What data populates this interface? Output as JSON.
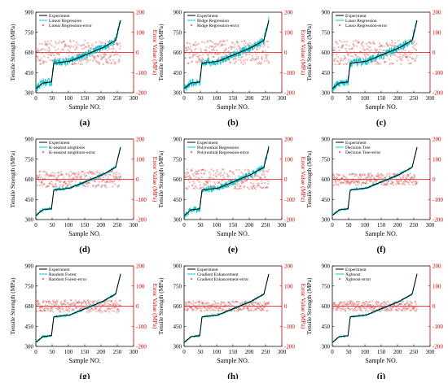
{
  "figure": {
    "xlabel": "Sample NO.",
    "ylabel_left": "Tensile Strength (MPa)",
    "ylabel_right": "Error Value (MPa)"
  },
  "colors": {
    "experiment": "#000000",
    "prediction": "#00c8d2",
    "error": "#d24a4a",
    "zero_line": "#ff0000",
    "right_axis": "#cc0000"
  },
  "chart_data": [
    {
      "type": "line",
      "panel_label": "(a)",
      "series": [
        {
          "name": "Experiment"
        },
        {
          "name": "Linear Regression"
        },
        {
          "name": "Linear Regression-error"
        }
      ],
      "xlim": [
        0,
        300
      ],
      "ylim_left": [
        300,
        900
      ],
      "ylim_right": [
        -200,
        200
      ],
      "xticks": [
        0,
        50,
        100,
        150,
        200,
        250,
        300
      ],
      "yticks_left": [
        300,
        450,
        600,
        750,
        900
      ],
      "yticks_right": [
        -200,
        -100,
        0,
        100,
        200
      ],
      "grid": false,
      "legend": "top-left",
      "pred_noise": 30,
      "err_range": 60
    },
    {
      "type": "line",
      "panel_label": "(b)",
      "series": [
        {
          "name": "Experiment"
        },
        {
          "name": "Ridge Regression"
        },
        {
          "name": "Ridge Regression-error"
        }
      ],
      "xlim": [
        0,
        300
      ],
      "ylim_left": [
        300,
        900
      ],
      "ylim_right": [
        -200,
        200
      ],
      "xticks": [
        0,
        50,
        100,
        150,
        200,
        250,
        300
      ],
      "yticks_left": [
        300,
        450,
        600,
        750,
        900
      ],
      "yticks_right": [
        -200,
        -100,
        0,
        100,
        200
      ],
      "grid": false,
      "legend": "top-left",
      "pred_noise": 30,
      "err_range": 60
    },
    {
      "type": "line",
      "panel_label": "(c)",
      "series": [
        {
          "name": "Experiment"
        },
        {
          "name": "Lasso Regression"
        },
        {
          "name": "Lasso Regression-error"
        }
      ],
      "xlim": [
        0,
        300
      ],
      "ylim_left": [
        300,
        900
      ],
      "ylim_right": [
        -200,
        200
      ],
      "xticks": [
        0,
        50,
        100,
        150,
        200,
        250,
        300
      ],
      "yticks_left": [
        300,
        450,
        600,
        750,
        900
      ],
      "yticks_right": [
        -200,
        -100,
        0,
        100,
        200
      ],
      "grid": false,
      "legend": "top-left",
      "pred_noise": 30,
      "err_range": 60
    },
    {
      "type": "line",
      "panel_label": "(d)",
      "series": [
        {
          "name": "Experiment"
        },
        {
          "name": "K-nearest neighbors"
        },
        {
          "name": "K-nearest neighbors-error"
        }
      ],
      "xlim": [
        0,
        300
      ],
      "ylim_left": [
        300,
        900
      ],
      "ylim_right": [
        -200,
        200
      ],
      "xticks": [
        0,
        50,
        100,
        150,
        200,
        250,
        300
      ],
      "yticks_left": [
        300,
        450,
        600,
        750,
        900
      ],
      "yticks_right": [
        -200,
        -100,
        0,
        100,
        200
      ],
      "grid": false,
      "legend": "top-left",
      "pred_noise": 12,
      "err_range": 40
    },
    {
      "type": "line",
      "panel_label": "(e)",
      "series": [
        {
          "name": "Experiment"
        },
        {
          "name": "Polynomial Regression"
        },
        {
          "name": "Polynomial Regression-error"
        }
      ],
      "xlim": [
        0,
        300
      ],
      "ylim_left": [
        300,
        900
      ],
      "ylim_right": [
        -200,
        200
      ],
      "xticks": [
        0,
        50,
        100,
        150,
        200,
        250,
        300
      ],
      "yticks_left": [
        300,
        450,
        600,
        750,
        900
      ],
      "yticks_right": [
        -200,
        -100,
        0,
        100,
        200
      ],
      "grid": false,
      "legend": "top-left",
      "pred_noise": 25,
      "err_range": 50
    },
    {
      "type": "line",
      "panel_label": "(f)",
      "series": [
        {
          "name": "Experiment"
        },
        {
          "name": "Decision Tree"
        },
        {
          "name": "Decision Tree-error"
        }
      ],
      "xlim": [
        0,
        300
      ],
      "ylim_left": [
        300,
        900
      ],
      "ylim_right": [
        -200,
        200
      ],
      "xticks": [
        0,
        50,
        100,
        150,
        200,
        250,
        300
      ],
      "yticks_left": [
        300,
        450,
        600,
        750,
        900
      ],
      "yticks_right": [
        -200,
        -100,
        0,
        100,
        200
      ],
      "grid": false,
      "legend": "top-left",
      "pred_noise": 8,
      "err_range": 30
    },
    {
      "type": "line",
      "panel_label": "(g)",
      "series": [
        {
          "name": "Experiment"
        },
        {
          "name": "Random Forest"
        },
        {
          "name": "Random Forest-error"
        }
      ],
      "xlim": [
        0,
        300
      ],
      "ylim_left": [
        300,
        900
      ],
      "ylim_right": [
        -200,
        200
      ],
      "xticks": [
        0,
        50,
        100,
        150,
        200,
        250,
        300
      ],
      "yticks_left": [
        300,
        450,
        600,
        750,
        900
      ],
      "yticks_right": [
        -200,
        -100,
        0,
        100,
        200
      ],
      "grid": false,
      "legend": "top-left",
      "pred_noise": 8,
      "err_range": 30
    },
    {
      "type": "line",
      "panel_label": "(h)",
      "series": [
        {
          "name": "Experiment"
        },
        {
          "name": "Gradient Enhancement"
        },
        {
          "name": "Gradient Enhancement-error"
        }
      ],
      "xlim": [
        0,
        300
      ],
      "ylim_left": [
        300,
        900
      ],
      "ylim_right": [
        -200,
        200
      ],
      "xticks": [
        0,
        50,
        100,
        150,
        200,
        250,
        300
      ],
      "yticks_left": [
        300,
        450,
        600,
        750,
        900
      ],
      "yticks_right": [
        -200,
        -100,
        0,
        100,
        200
      ],
      "grid": false,
      "legend": "top-left",
      "pred_noise": 7,
      "err_range": 25
    },
    {
      "type": "line",
      "panel_label": "(i)",
      "series": [
        {
          "name": "Experiment"
        },
        {
          "name": "Xgboost"
        },
        {
          "name": "Xgboost-error"
        }
      ],
      "xlim": [
        0,
        300
      ],
      "ylim_left": [
        300,
        900
      ],
      "ylim_right": [
        -200,
        200
      ],
      "xticks": [
        0,
        50,
        100,
        150,
        200,
        250,
        300
      ],
      "yticks_left": [
        300,
        450,
        600,
        750,
        900
      ],
      "yticks_right": [
        -200,
        -100,
        0,
        100,
        200
      ],
      "grid": false,
      "legend": "top-left",
      "pred_noise": 6,
      "err_range": 25
    }
  ]
}
